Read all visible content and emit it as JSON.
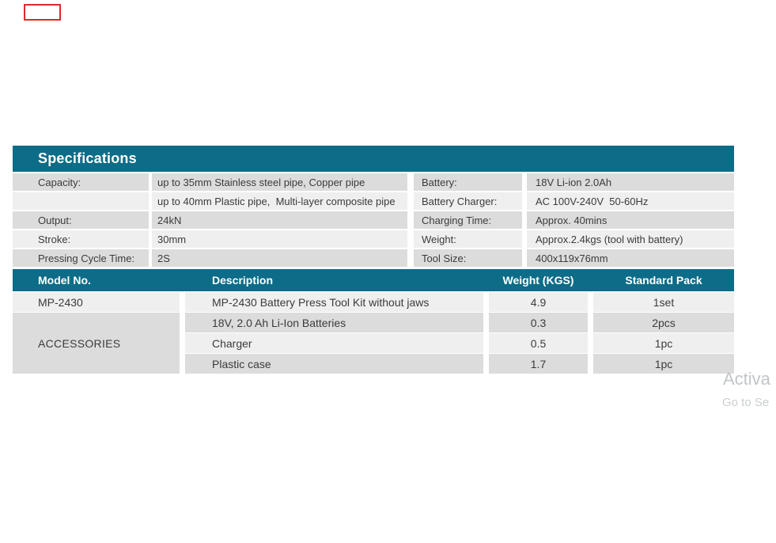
{
  "colors": {
    "header_teal": "#0d6c87",
    "row_dark": "#dcdcdc",
    "row_light": "#efefef",
    "text_dark": "#3b3b3b",
    "red_marker": "#e0282a",
    "watermark_primary": "#c1c5c7",
    "watermark_secondary": "#cbced0"
  },
  "spec_table": {
    "title": "Specifications",
    "left_rows": [
      {
        "label": "Capacity:",
        "value": "up to 35mm Stainless steel pipe, Copper pipe"
      },
      {
        "label": "",
        "value": "up to 40mm Plastic pipe,  Multi-layer composite pipe"
      },
      {
        "label": "Output:",
        "value": "24kN"
      },
      {
        "label": "Stroke:",
        "value": "30mm"
      },
      {
        "label": "Pressing Cycle Time:",
        "value": "2S"
      }
    ],
    "right_rows": [
      {
        "label": "Battery:",
        "value": "18V Li-ion 2.0Ah"
      },
      {
        "label": "Battery Charger:",
        "value": "AC 100V-240V  50-60Hz"
      },
      {
        "label": "Charging Time:",
        "value": "Approx. 40mins"
      },
      {
        "label": "Weight:",
        "value": "Approx.2.4kgs (tool with battery)"
      },
      {
        "label": "Tool Size:",
        "value": "400x119x76mm"
      }
    ]
  },
  "model_table": {
    "headers": [
      "Model No.",
      "Description",
      "Weight (KGS)",
      "Standard Pack"
    ],
    "main_row": {
      "model": "MP-2430",
      "description": "MP-2430 Battery Press Tool Kit without jaws",
      "weight": "4.9",
      "pack": "1set"
    },
    "accessories_label": "ACCESSORIES",
    "accessory_rows": [
      {
        "description": "18V, 2.0 Ah Li-Ion Batteries",
        "weight": "0.3",
        "pack": "2pcs"
      },
      {
        "description": "Charger",
        "weight": "0.5",
        "pack": "1pc"
      },
      {
        "description": "Plastic case",
        "weight": "1.7",
        "pack": "1pc"
      }
    ]
  },
  "watermark": {
    "line1": "Activa",
    "line2": "Go to Se"
  }
}
